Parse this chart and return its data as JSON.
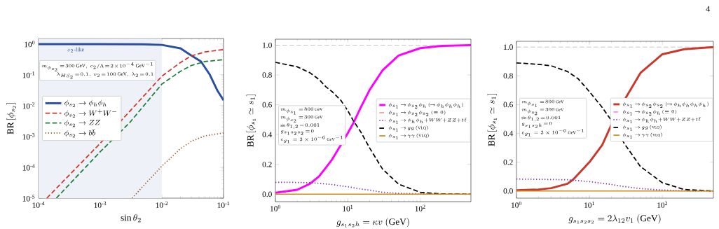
{
  "chart_data": [
    {
      "type": "line",
      "xlabel": "\\sin\\theta_2",
      "ylabel": "\\mathrm{BR}\\,[\\phi_{s_2}]",
      "log": "xy",
      "legend": "left",
      "xlim": [
        0.0001,
        0.1
      ],
      "ylim": [
        1e-05,
        1.5
      ],
      "xticks": [
        {
          "value": 0.0001,
          "label": "10$^{-4}$"
        },
        {
          "value": 0.001,
          "label": "10$^{-3}$"
        },
        {
          "value": 0.01,
          "label": "10$^{-2}$"
        },
        {
          "value": 0.1,
          "label": "10$^{-1}$"
        }
      ],
      "yticks": [
        {
          "value": 1e-05,
          "label": "10$^{-5}$"
        },
        {
          "value": 0.0001,
          "label": "10$^{-4}$"
        },
        {
          "value": 0.001,
          "label": "10$^{-3}$"
        },
        {
          "value": 0.01,
          "label": "10$^{-2}$"
        },
        {
          "value": 0.1,
          "label": "10$^{-1}$"
        },
        {
          "value": 1,
          "label": "10$^{0}$"
        }
      ],
      "bands": [
        {
          "axis": "x",
          "from": 0.0001,
          "to": 0.01,
          "label": "s_2\\mbox{-like}",
          "color": "#eef2f8"
        }
      ],
      "annotations": [
        "m_{\\phi_{s_2}}\\!=\\!300~\\mathrm{GeV},~c_2/\\Lambda\\!=\\!2\\!\\times\\!10^{-4}~\\mathrm{GeV}^{-1}",
        "\\lambda_{HS_2}\\!=\\!0.1,~v_2\\!=\\!100~\\mathrm{GeV},~\\lambda_2\\!=\\!0.1"
      ],
      "series": [
        {
          "name": "\\phi_{s_2}\\to\\phi_h\\phi_h",
          "color": "#2a4fa0",
          "line_style": "solid",
          "x": [
            0.0001,
            0.001,
            0.005,
            0.01,
            0.02,
            0.03,
            0.043,
            0.06,
            0.08,
            0.1
          ],
          "values": [
            0.99,
            0.99,
            0.97,
            0.93,
            0.72,
            0.42,
            0.27,
            0.1,
            0.03,
            0.015
          ]
        },
        {
          "name": "\\phi_{s_2}\\to W^+W^-",
          "color": "#d0332a",
          "line_style": "dashed",
          "x": [
            0.000136,
            0.001,
            0.003,
            0.01,
            0.02,
            0.03,
            0.05,
            0.1
          ],
          "values": [
            1e-05,
            0.0006,
            0.0065,
            0.09,
            0.25,
            0.41,
            0.55,
            0.66
          ]
        },
        {
          "name": "\\phi_{s_2}\\to ZZ",
          "color": "#1a7f3a",
          "line_style": "dashed",
          "x": [
            0.000194,
            0.001,
            0.003,
            0.01,
            0.02,
            0.03,
            0.05,
            0.1
          ],
          "values": [
            1e-05,
            0.00032,
            0.0028,
            0.05,
            0.13,
            0.2,
            0.27,
            0.31
          ]
        },
        {
          "name": "\\phi_{s_2}\\to b\\bar b",
          "color": "#9a5a3a",
          "line_style": "dotted",
          "x": [
            0.0033,
            0.005,
            0.01,
            0.02,
            0.03,
            0.05,
            0.1
          ],
          "values": [
            1e-05,
            2.5e-05,
            0.00011,
            0.0004,
            0.0007,
            0.00105,
            0.0013
          ]
        }
      ]
    },
    {
      "type": "line",
      "xlabel": "g_{s_1s_2h}=\\kappa v~(\\mathrm{GeV})",
      "ylabel": "\\mathrm{BR}\\,[\\phi_{s_1}\\simeq s_1]",
      "log": "x",
      "legend": "right",
      "xlim": [
        1,
        500
      ],
      "ylim": [
        -0.05,
        1.04
      ],
      "xticks": [
        {
          "value": 1,
          "label": "10$^{0}$"
        },
        {
          "value": 10,
          "label": "10$^{1}$"
        },
        {
          "value": 100,
          "label": "10$^{2}$"
        }
      ],
      "yticks": [
        {
          "value": 0,
          "label": "0.0"
        },
        0.2,
        0.4,
        0.6,
        0.8,
        {
          "value": 1,
          "label": "1.0"
        }
      ],
      "ref_lines": [
        {
          "axis": "y",
          "value": 1,
          "color": "#aaaaaa",
          "line_style": "dashed"
        }
      ],
      "annotations": [
        "m_{\\phi_{s_1}}\\!=\\!800~\\mathrm{GeV}",
        "m_{\\phi_{s_2}}\\!=\\!300~\\mathrm{GeV}",
        "\\sin\\theta_{1,2}\\!=\\!0.001",
        "g_{s_1s_2s_2}\\!=\\!0",
        "c_{g_1}=3\\times10^{-6}~\\mathrm{GeV}^{-1}"
      ],
      "series": [
        {
          "name": "\\phi_{s_1}\\!\\to\\!\\phi_{s_2}\\phi_h\\,(\\!\\to\\!\\phi_h\\phi_h\\phi_h)",
          "color": "#ff00ff",
          "line_style": "solid",
          "x": [
            1,
            2,
            3,
            4,
            5,
            6,
            8,
            10,
            12,
            15,
            20,
            30,
            50,
            100,
            200,
            500
          ],
          "values": [
            0.01,
            0.03,
            0.07,
            0.12,
            0.18,
            0.23,
            0.33,
            0.41,
            0.48,
            0.58,
            0.7,
            0.83,
            0.93,
            0.98,
            0.995,
            1.0
          ]
        },
        {
          "name": "\\phi_{s_1}\\!\\to\\!\\phi_{s_2}\\phi_{s_2}~(\\equiv0)",
          "color": "#f4a0a0",
          "line_style": "dashed",
          "values": [
            null,
            null
          ]
        },
        {
          "name": "\\phi_{s_1}\\!\\to\\!\\phi_h\\phi_h{+}WW{+}ZZ{+}t\\bar t",
          "color": "#7b2fbe",
          "line_style": "dotted",
          "x": [
            1,
            2,
            3,
            4,
            6,
            10,
            15,
            20,
            30,
            50,
            100,
            200,
            500
          ],
          "values": [
            0.08,
            0.079,
            0.077,
            0.073,
            0.065,
            0.05,
            0.035,
            0.027,
            0.013,
            0.006,
            0.002,
            0,
            0
          ]
        },
        {
          "name": "\\phi_{s_1}\\!\\to\\!gg~(\\mathrm{VLQ})",
          "color": "#000000",
          "line_style": "dashed",
          "x": [
            1,
            2,
            3,
            4,
            5,
            6,
            8,
            10,
            12,
            15,
            20,
            30,
            50,
            100,
            200,
            500
          ],
          "values": [
            0.885,
            0.855,
            0.815,
            0.77,
            0.72,
            0.69,
            0.63,
            0.56,
            0.49,
            0.42,
            0.31,
            0.17,
            0.068,
            0.013,
            0.002,
            0
          ]
        },
        {
          "name": "\\phi_{s_1}\\!\\to\\!\\gamma\\gamma~(\\mathrm{VLQ})",
          "color": "#c8901a",
          "line_style": "solid",
          "x": [
            1,
            500
          ],
          "values": [
            0,
            0
          ]
        }
      ]
    },
    {
      "type": "line",
      "xlabel": "g_{s_1s_2s_2}=2\\lambda_{12}v_1~(\\mathrm{GeV})",
      "ylabel": "\\mathrm{BR}\\,[\\phi_{s_1}\\simeq s_1]",
      "log": "x",
      "legend": "right",
      "xlim": [
        1,
        500
      ],
      "ylim": [
        -0.05,
        1.04
      ],
      "xticks": [
        {
          "value": 1,
          "label": "10$^{0}$"
        },
        {
          "value": 10,
          "label": "10$^{1}$"
        },
        {
          "value": 100,
          "label": "10$^{2}$"
        }
      ],
      "yticks": [
        {
          "value": 0,
          "label": "0.0"
        },
        0.2,
        0.4,
        0.6,
        0.8,
        {
          "value": 1,
          "label": "1.0"
        }
      ],
      "ref_lines": [
        {
          "axis": "y",
          "value": 1,
          "color": "#aaaaaa",
          "line_style": "dashed"
        }
      ],
      "annotations": [
        "4",
        "m_{\\phi_{s_1}}\\!=\\!800~\\mathrm{GeV}",
        "m_{\\phi_{s_2}}\\!=\\!300~\\mathrm{GeV}",
        "\\sin\\theta_{1,2}\\!=\\!0.001",
        "g_{s_1s_2h}\\!=\\!0",
        "c_{g_1}=3\\times10^{-6}~\\mathrm{GeV}^{-1}"
      ],
      "series": [
        {
          "name": "\\phi_{s_1}\\!\\to\\!\\phi_{s_2}\\phi_{s_2}\\,(\\!\\to\\!\\phi_h\\phi_h\\phi_h\\phi_h)",
          "color": "#c8392b",
          "line_style": "solid",
          "x": [
            1,
            2,
            3,
            5,
            6,
            10,
            15,
            20,
            30,
            50,
            100,
            200,
            500
          ],
          "values": [
            0.005,
            0.01,
            0.02,
            0.05,
            0.08,
            0.2,
            0.32,
            0.46,
            0.63,
            0.82,
            0.95,
            0.985,
            1.0
          ]
        },
        {
          "name": "\\phi_{s_1}\\!\\to\\!\\phi_{s_2}\\phi_h~(\\equiv0)",
          "color": "#ff88ee",
          "line_style": "dashed",
          "values": [
            null,
            null
          ]
        },
        {
          "name": "\\phi_{s_1}\\!\\to\\!\\phi_h\\phi_h{+}WW{+}ZZ{+}t\\bar t",
          "color": "#7b2fbe",
          "line_style": "dotted",
          "x": [
            1,
            5,
            10,
            20,
            30,
            50,
            100,
            200,
            500
          ],
          "values": [
            0.083,
            0.078,
            0.065,
            0.045,
            0.03,
            0.017,
            0.006,
            0.001,
            0
          ]
        },
        {
          "name": "\\phi_{s_1}\\!\\to\\!gg~(\\mathrm{VLQ})",
          "color": "#000000",
          "line_style": "dashed",
          "x": [
            1,
            2,
            3,
            5,
            7,
            10,
            15,
            20,
            30,
            50,
            100,
            200,
            500
          ],
          "values": [
            0.89,
            0.88,
            0.87,
            0.83,
            0.78,
            0.69,
            0.58,
            0.49,
            0.33,
            0.17,
            0.057,
            0.01,
            0
          ]
        },
        {
          "name": "\\phi_{s_1}\\!\\to\\!\\gamma\\gamma~(\\mathrm{VLQ})",
          "color": "#c8901a",
          "line_style": "solid",
          "x": [
            1,
            500
          ],
          "values": [
            0,
            0
          ]
        }
      ]
    }
  ]
}
